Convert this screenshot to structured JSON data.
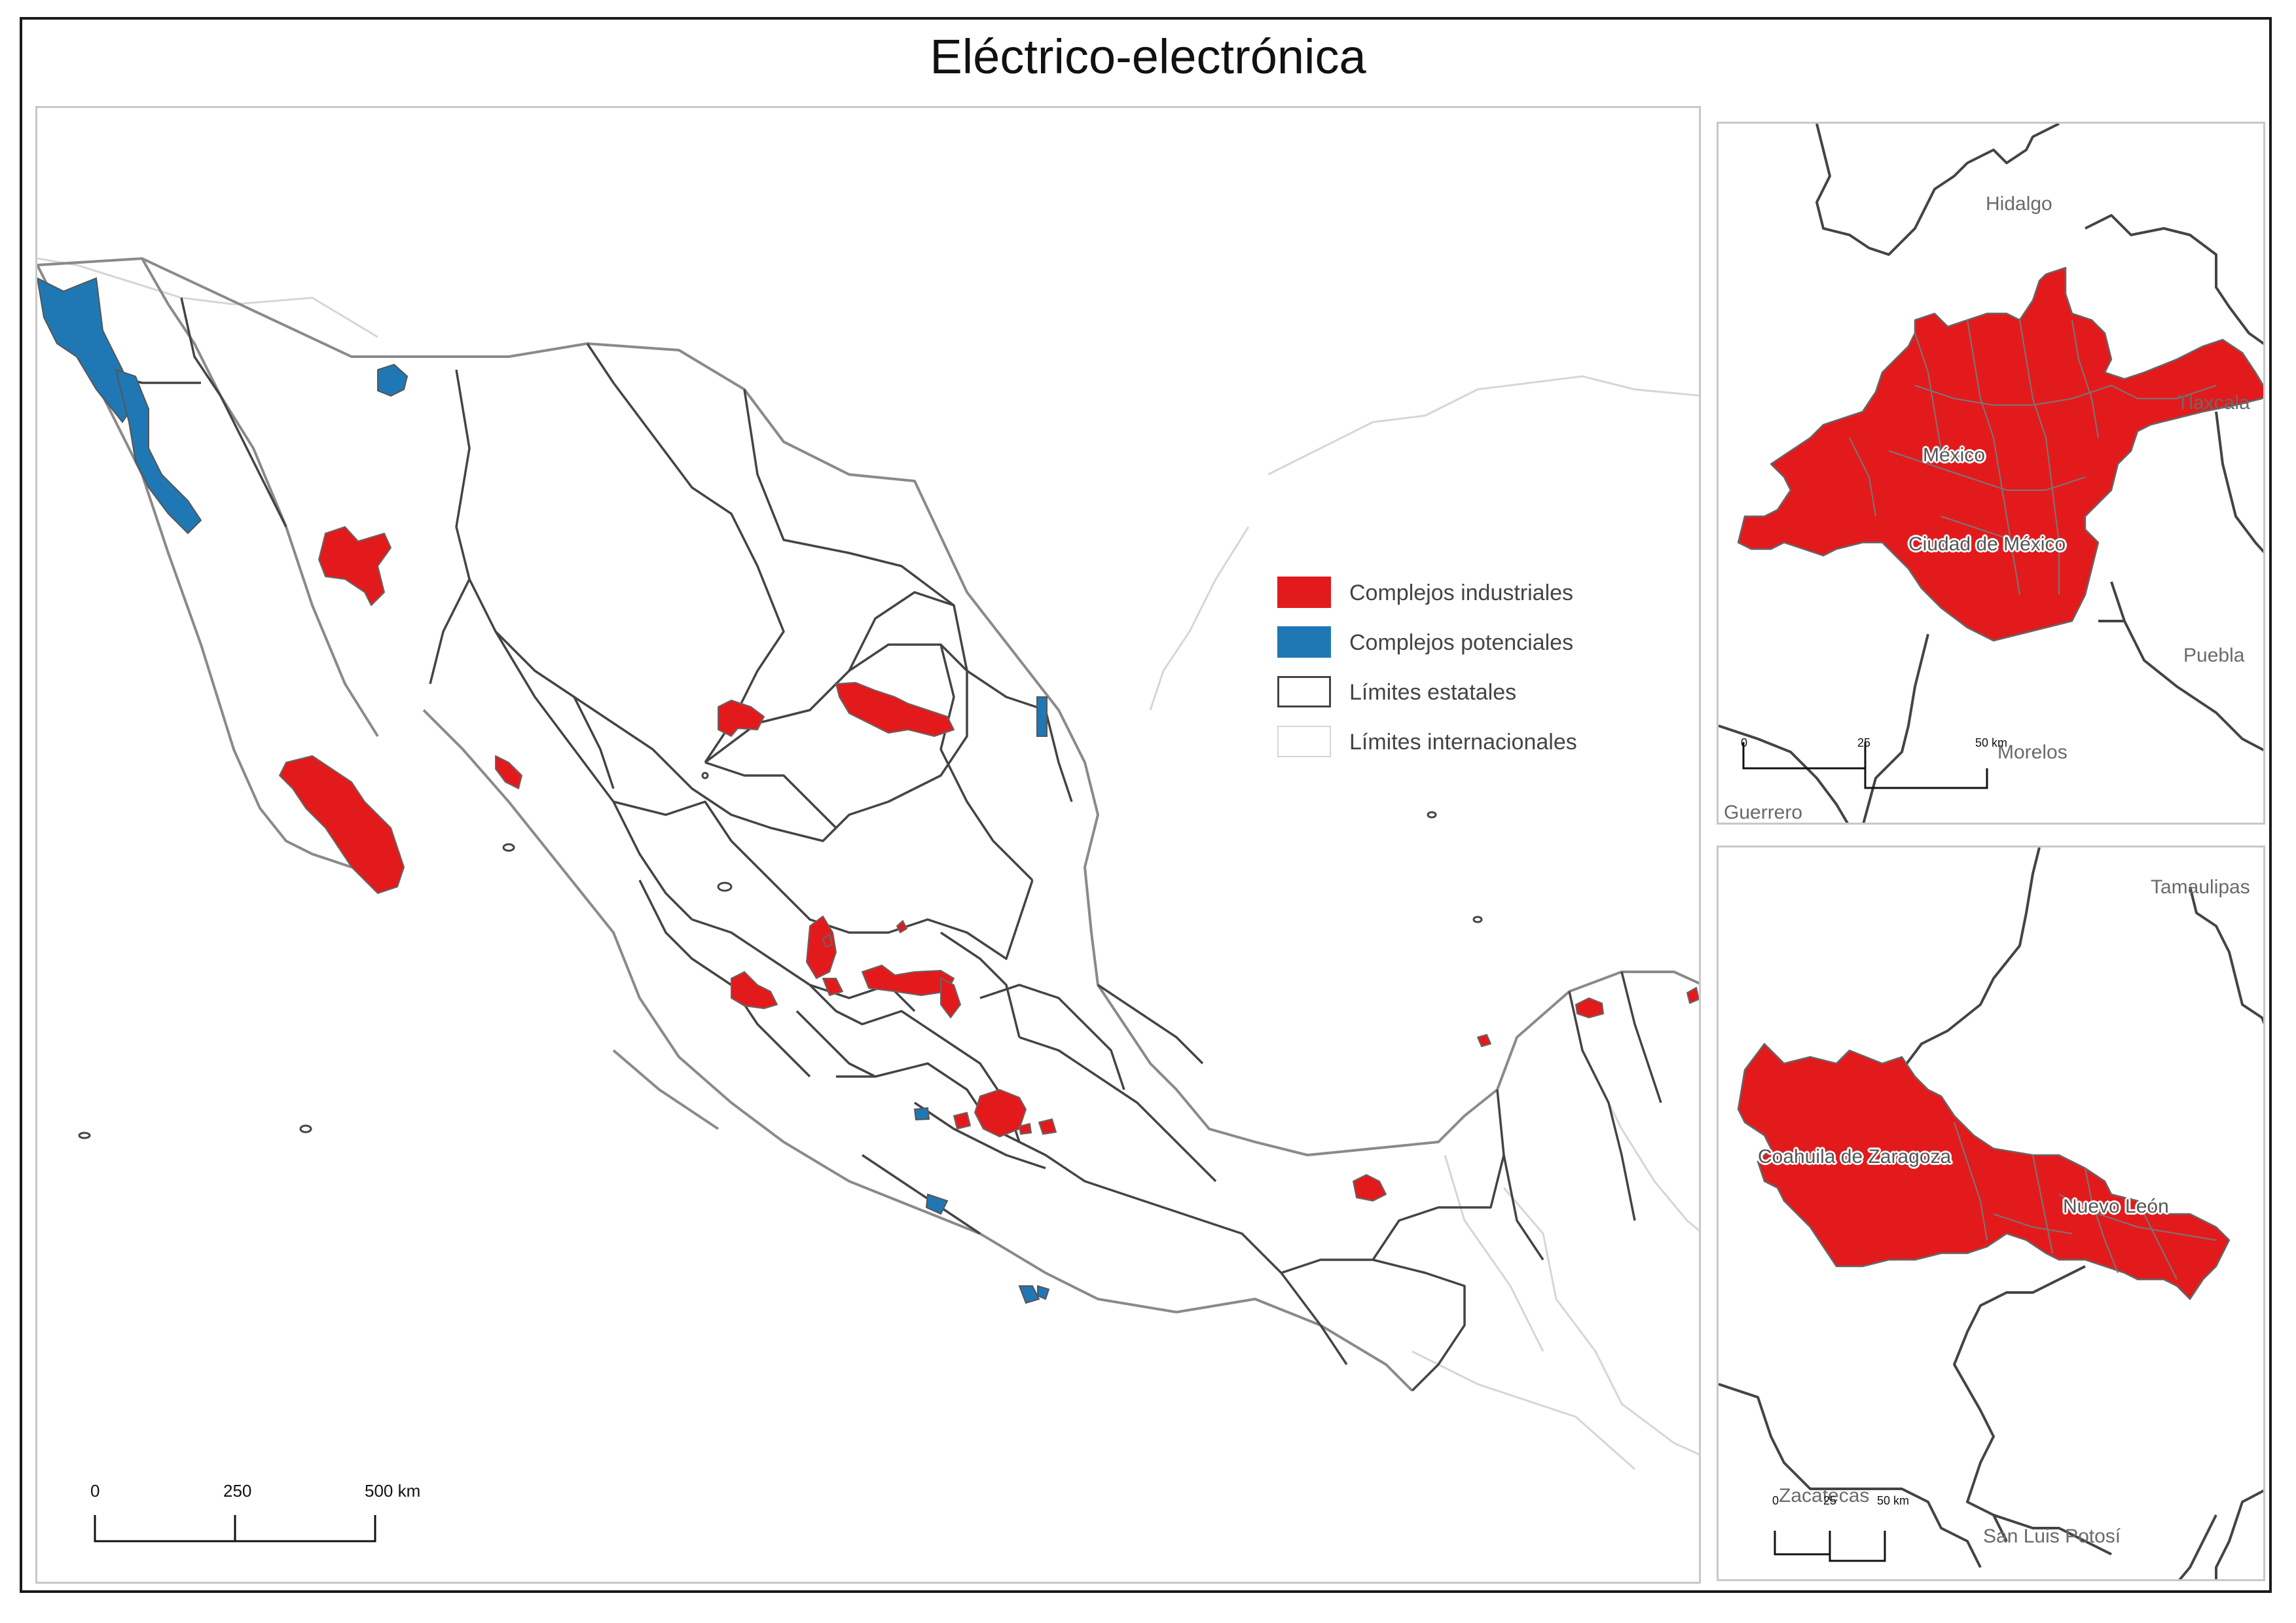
{
  "title": "Eléctrico-electrónica",
  "colors": {
    "industrial": "#e31a1c",
    "potential": "#1f78b4",
    "state_border": "#444444",
    "international_border": "#d6d6d6",
    "coast": "#888888"
  },
  "legend": {
    "items": [
      {
        "label": "Complejos industriales",
        "swatch": "industrial"
      },
      {
        "label": "Complejos potenciales",
        "swatch": "potential"
      },
      {
        "label": "Límites estatales",
        "swatch": "state"
      },
      {
        "label": "Límites internacionales",
        "swatch": "international"
      }
    ]
  },
  "main_map": {
    "scale": {
      "labels": [
        "0",
        "250",
        "500 km"
      ]
    }
  },
  "inset_cdmx": {
    "region_labels": {
      "hidalgo": "Hidalgo",
      "tlaxcala": "Tlaxcala",
      "mexico": "México",
      "cdmx": "Ciudad de México",
      "puebla": "Puebla",
      "morelos": "Morelos",
      "guerrero": "Guerrero"
    },
    "scale": {
      "labels": [
        "0",
        "25",
        "50 km"
      ]
    }
  },
  "inset_north": {
    "region_labels": {
      "tamaulipas": "Tamaulipas",
      "coahuila": "Coahuila de Zaragoza",
      "nuevo_leon": "Nuevo León",
      "zacatecas": "Zacatecas",
      "slp": "San Luis Potosí"
    },
    "scale": {
      "labels": [
        "0",
        "25",
        "50 km"
      ]
    }
  }
}
